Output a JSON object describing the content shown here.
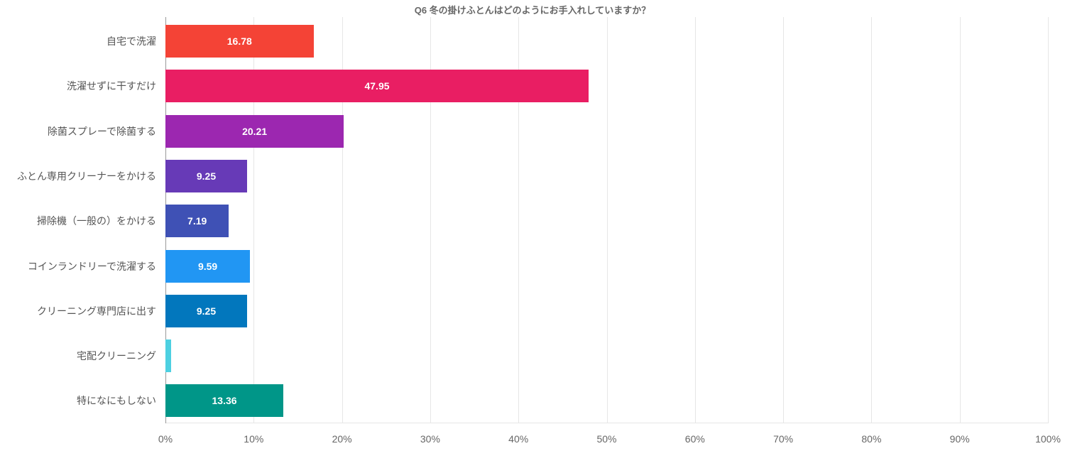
{
  "title": "Q6 冬の掛けふとんはどのようにお手入れしていますか？",
  "chart_data": {
    "type": "bar",
    "orientation": "horizontal",
    "title": "Q6 冬の掛けふとんはどのようにお手入れしていますか？",
    "xlabel": "",
    "ylabel": "",
    "xlim": [
      0,
      100
    ],
    "grid": true,
    "legend": "none",
    "x_ticks": [
      "0%",
      "10%",
      "20%",
      "30%",
      "40%",
      "50%",
      "60%",
      "70%",
      "80%",
      "90%",
      "100%"
    ],
    "categories": [
      "自宅で洗濯",
      "洗濯せずに干すだけ",
      "除菌スプレーで除菌する",
      "ふとん専用クリーナーをかける",
      "掃除機（一般の）をかける",
      "コインランドリーで洗濯する",
      "クリーニング専門店に出す",
      "宅配クリーニング",
      "特になにもしない"
    ],
    "values": [
      16.78,
      47.95,
      20.21,
      9.25,
      7.19,
      9.59,
      9.25,
      0.68,
      13.36
    ],
    "labels": [
      "16.78",
      "47.95",
      "20.21",
      "9.25",
      "7.19",
      "9.59",
      "9.25",
      "",
      "13.36"
    ],
    "colors": [
      "#F44336",
      "#E91E63",
      "#9C27B0",
      "#673AB7",
      "#3F51B5",
      "#2196F3",
      "#0277BD",
      "#4DD0E1",
      "#009688"
    ]
  }
}
